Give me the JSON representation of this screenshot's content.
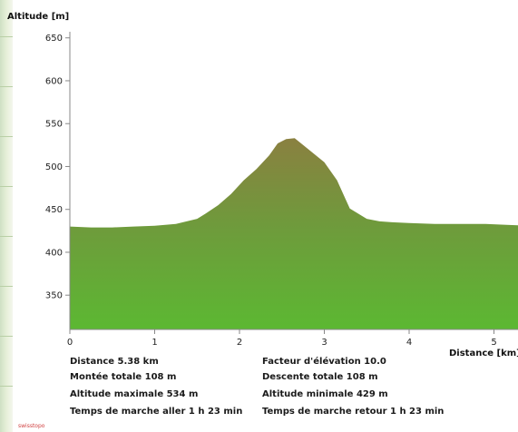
{
  "chart_data": {
    "type": "area",
    "ylabel": "Altitude [m]",
    "xlabel": "Distance [km]",
    "xlim": [
      0,
      5.38
    ],
    "ylim": [
      310,
      655
    ],
    "x_ticks": [
      0,
      1,
      2,
      3,
      4,
      5
    ],
    "y_ticks": [
      350,
      400,
      450,
      500,
      550,
      600,
      650
    ],
    "grid": false,
    "series": [
      {
        "x": [
          0,
          0.25,
          0.5,
          0.75,
          1.0,
          1.25,
          1.5,
          1.6,
          1.75,
          1.9,
          2.05,
          2.2,
          2.35,
          2.45,
          2.55,
          2.65,
          2.75,
          2.85,
          3.0,
          3.15,
          3.3,
          3.5,
          3.65,
          3.8,
          4.0,
          4.3,
          4.6,
          4.9,
          5.15,
          5.38
        ],
        "y": [
          430,
          429,
          429,
          430,
          431,
          433,
          439,
          445,
          455,
          468,
          484,
          497,
          513,
          527,
          532,
          533,
          525,
          517,
          505,
          484,
          451,
          439,
          436,
          435,
          434,
          433,
          433,
          433,
          432,
          431
        ]
      }
    ]
  },
  "stats": {
    "distance": "Distance 5.38 km",
    "elevation_factor": "Facteur d'élévation 10.0",
    "ascent": "Montée totale  108 m",
    "descent": "Descente totale  108 m",
    "max_altitude": "Altitude maximale  534 m",
    "min_altitude": "Altitude minimale  429 m",
    "walk_time_out": "Temps de marche aller  1 h 23 min",
    "walk_time_back": "Temps de marche retour  1 h 23 min"
  },
  "footer": {
    "logo_text": "swisstopo"
  },
  "colors": {
    "area_top": "#8a8040",
    "area_mid": "#6f9a3c",
    "area_bottom": "#5cb832",
    "axis": "#888888"
  }
}
